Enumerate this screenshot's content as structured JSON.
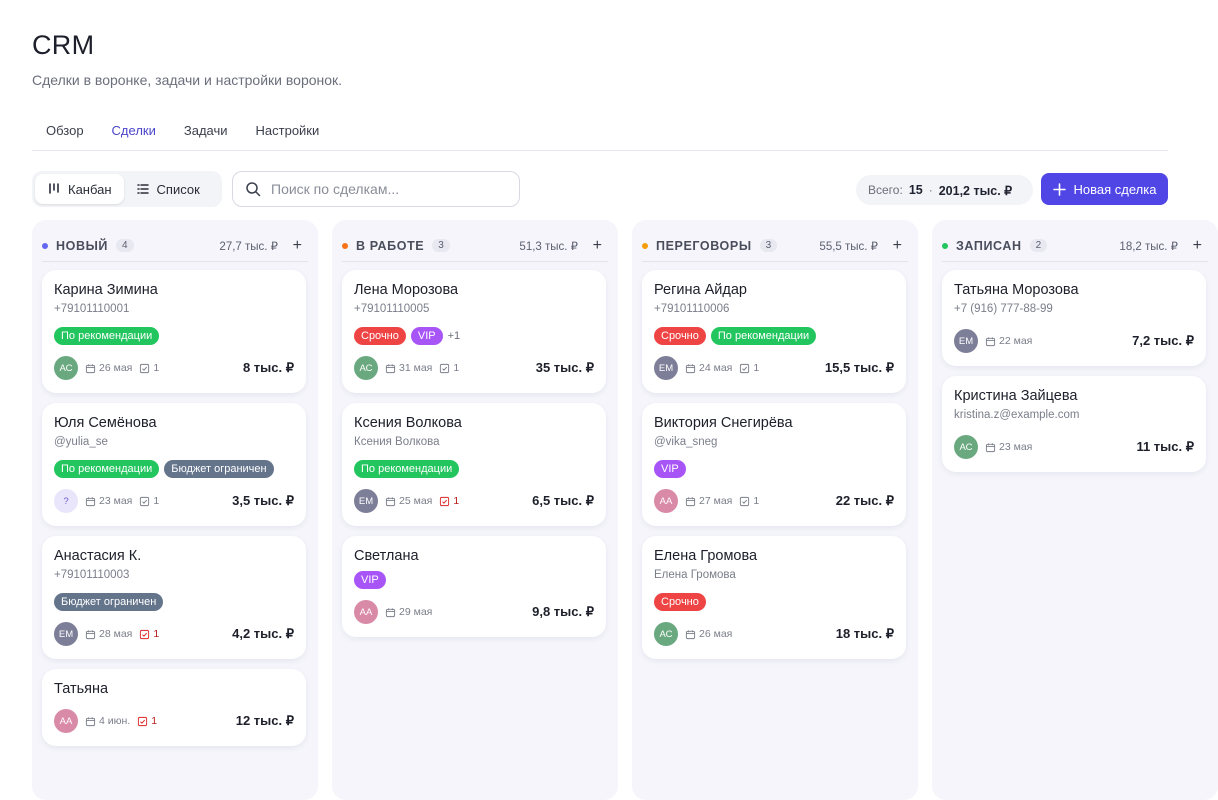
{
  "header": {
    "title": "CRM",
    "subtitle": "Сделки в воронке, задачи и настройки воронок."
  },
  "tabs": [
    {
      "label": "Обзор",
      "active": false
    },
    {
      "label": "Сделки",
      "active": true
    },
    {
      "label": "Задачи",
      "active": false
    },
    {
      "label": "Настройки",
      "active": false
    }
  ],
  "toolbar": {
    "view_kanban": "Канбан",
    "view_list": "Список",
    "search_placeholder": "Поиск по сделкам...",
    "totals_label": "Всего:",
    "totals_count": "15",
    "totals_separator": "·",
    "totals_sum": "201,2 тыс. ₽",
    "new_deal": "Новая сделка"
  },
  "colors": {
    "accent": "#4f46e5",
    "tag_green": "#22c55e",
    "tag_slate": "#64748b",
    "tag_red": "#ef4444",
    "tag_purple": "#a855f7"
  },
  "columns": [
    {
      "name": "НОВЫЙ",
      "count": "4",
      "sum": "27,7 тыс. ₽",
      "dot": "#6366f1",
      "cards": [
        {
          "name": "Карина Зимина",
          "sub": "+79101110001",
          "tags": [
            {
              "label": "По рекомендации",
              "color": "green"
            }
          ],
          "more": "",
          "avatar": "АС",
          "avatar_color": "#6aa87f",
          "date": "26 мая",
          "tasks": "1",
          "overdue": false,
          "amount": "8 тыс. ₽"
        },
        {
          "name": "Юля Семёнова",
          "sub": "@yulia_se",
          "tags": [
            {
              "label": "По рекомендации",
              "color": "green"
            },
            {
              "label": "Бюджет ограничен",
              "color": "slate"
            }
          ],
          "more": "",
          "avatar": "?",
          "avatar_color": "#e9e6fb",
          "date": "23 мая",
          "tasks": "1",
          "overdue": false,
          "amount": "3,5 тыс. ₽"
        },
        {
          "name": "Анастасия К.",
          "sub": "+79101110003",
          "tags": [
            {
              "label": "Бюджет ограничен",
              "color": "slate"
            }
          ],
          "more": "",
          "avatar": "ЕМ",
          "avatar_color": "#7d7f98",
          "date": "28 мая",
          "tasks": "1",
          "overdue": true,
          "amount": "4,2 тыс. ₽"
        },
        {
          "name": "Татьяна",
          "sub": "",
          "tags": [],
          "more": "",
          "avatar": "АА",
          "avatar_color": "#d98aa6",
          "date": "4 июн.",
          "tasks": "1",
          "overdue": true,
          "amount": "12 тыс. ₽"
        }
      ]
    },
    {
      "name": "В РАБОТЕ",
      "count": "3",
      "sum": "51,3 тыс. ₽",
      "dot": "#f97316",
      "cards": [
        {
          "name": "Лена Морозова",
          "sub": "+79101110005",
          "tags": [
            {
              "label": "Срочно",
              "color": "red"
            },
            {
              "label": "VIP",
              "color": "purple"
            }
          ],
          "more": "+1",
          "avatar": "АС",
          "avatar_color": "#6aa87f",
          "date": "31 мая",
          "tasks": "1",
          "overdue": false,
          "amount": "35 тыс. ₽"
        },
        {
          "name": "Ксения Волкова",
          "sub": "Ксения Волкова",
          "tags": [
            {
              "label": "По рекомендации",
              "color": "green"
            }
          ],
          "more": "",
          "avatar": "ЕМ",
          "avatar_color": "#7d7f98",
          "date": "25 мая",
          "tasks": "1",
          "overdue": true,
          "amount": "6,5 тыс. ₽"
        },
        {
          "name": "Светлана",
          "sub": "",
          "tags": [
            {
              "label": "VIP",
              "color": "purple"
            }
          ],
          "more": "",
          "avatar": "АА",
          "avatar_color": "#d98aa6",
          "date": "29 мая",
          "tasks": "",
          "overdue": false,
          "amount": "9,8 тыс. ₽"
        }
      ]
    },
    {
      "name": "ПЕРЕГОВОРЫ",
      "count": "3",
      "sum": "55,5 тыс. ₽",
      "dot": "#f59e0b",
      "cards": [
        {
          "name": "Регина Айдар",
          "sub": "+79101110006",
          "tags": [
            {
              "label": "Срочно",
              "color": "red"
            },
            {
              "label": "По рекомендации",
              "color": "green"
            }
          ],
          "more": "",
          "avatar": "ЕМ",
          "avatar_color": "#7d7f98",
          "date": "24 мая",
          "tasks": "1",
          "overdue": false,
          "amount": "15,5 тыс. ₽"
        },
        {
          "name": "Виктория Снегирёва",
          "sub": "@vika_sneg",
          "tags": [
            {
              "label": "VIP",
              "color": "purple"
            }
          ],
          "more": "",
          "avatar": "АА",
          "avatar_color": "#d98aa6",
          "date": "27 мая",
          "tasks": "1",
          "overdue": false,
          "amount": "22 тыс. ₽"
        },
        {
          "name": "Елена Громова",
          "sub": "Елена Громова",
          "tags": [
            {
              "label": "Срочно",
              "color": "red"
            }
          ],
          "more": "",
          "avatar": "АС",
          "avatar_color": "#6aa87f",
          "date": "26 мая",
          "tasks": "",
          "overdue": false,
          "amount": "18 тыс. ₽"
        }
      ]
    },
    {
      "name": "ЗАПИСАН",
      "count": "2",
      "sum": "18,2 тыс. ₽",
      "dot": "#22c55e",
      "cards": [
        {
          "name": "Татьяна Морозова",
          "sub": "+7 (916) 777-88-99",
          "tags": [],
          "more": "",
          "avatar": "ЕМ",
          "avatar_color": "#7d7f98",
          "date": "22 мая",
          "tasks": "",
          "overdue": false,
          "amount": "7,2 тыс. ₽"
        },
        {
          "name": "Кристина Зайцева",
          "sub": "kristina.z@example.com",
          "tags": [],
          "more": "",
          "avatar": "АС",
          "avatar_color": "#6aa87f",
          "date": "23 мая",
          "tasks": "",
          "overdue": false,
          "amount": "11 тыс. ₽"
        }
      ]
    }
  ]
}
